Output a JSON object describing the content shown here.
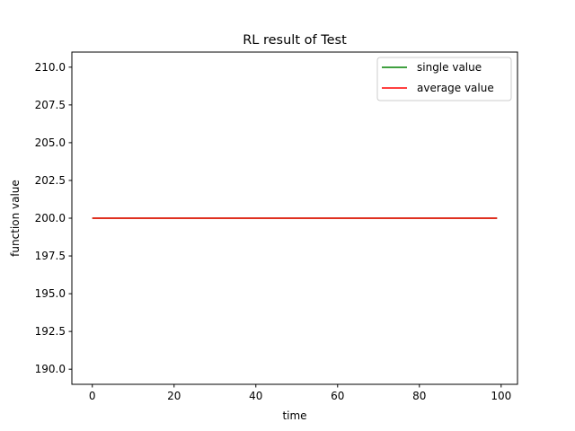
{
  "chart_data": {
    "type": "line",
    "title": "RL result of Test",
    "xlabel": "time",
    "ylabel": "function value",
    "xlim": [
      -5,
      104
    ],
    "ylim": [
      189,
      211
    ],
    "xticks": [
      0,
      20,
      40,
      60,
      80,
      100
    ],
    "yticks": [
      190.0,
      192.5,
      195.0,
      197.5,
      200.0,
      202.5,
      205.0,
      207.5,
      210.0
    ],
    "x_start": 0,
    "x_end": 99,
    "grid": false,
    "legend_position": "top-right",
    "series": [
      {
        "name": "single value",
        "color": "#008000",
        "constant_value": 200.0
      },
      {
        "name": "average value",
        "color": "#ff0000",
        "constant_value": 200.0
      }
    ]
  }
}
